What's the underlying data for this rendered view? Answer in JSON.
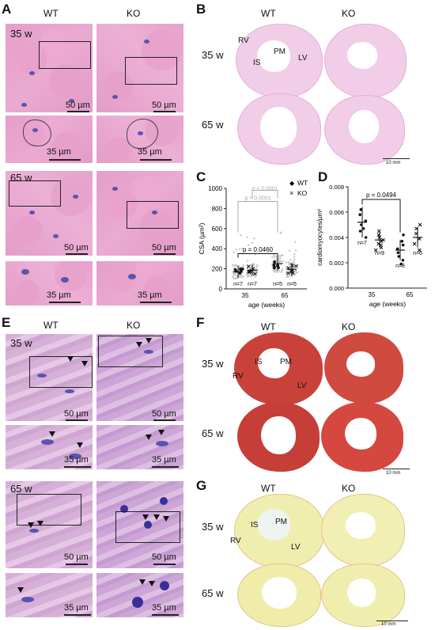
{
  "panels": {
    "A": {
      "label": "A",
      "col_wt": "WT",
      "col_ko": "KO",
      "row1": "35 w",
      "row2": "65 w",
      "scale_large": "50 µm",
      "scale_small": "35 µm"
    },
    "B": {
      "label": "B",
      "col_wt": "WT",
      "col_ko": "KO",
      "row1": "35 w",
      "row2": "65 w",
      "rv": "RV",
      "is": "IS",
      "pm": "PM",
      "lv": "LV",
      "scale": "10 mm"
    },
    "C": {
      "label": "C"
    },
    "D": {
      "label": "D"
    },
    "E": {
      "label": "E",
      "col_wt": "WT",
      "col_ko": "KO",
      "row1": "35 w",
      "row2": "65 w",
      "scale_large": "50 µm",
      "scale_small": "35 µm"
    },
    "F": {
      "label": "F",
      "col_wt": "WT",
      "col_ko": "KO",
      "row1": "35 w",
      "row2": "65 w",
      "rv": "RV",
      "is": "IS",
      "pm": "PM",
      "lv": "LV",
      "scale": "10 mm"
    },
    "G": {
      "label": "G",
      "col_wt": "WT",
      "col_ko": "KO",
      "row1": "35 w",
      "row2": "65 w",
      "rv": "RV",
      "is": "IS",
      "pm": "PM",
      "lv": "LV",
      "scale": "10 mm"
    }
  },
  "chart_data": [
    {
      "type": "scatter",
      "panel": "C",
      "xlabel": "age (weeks)",
      "ylabel": "CSA (µm²)",
      "categories": [
        "35",
        "65"
      ],
      "ylim": [
        0,
        1000
      ],
      "yticks": [
        0,
        200,
        400,
        600,
        800,
        1000
      ],
      "legend": {
        "placement": "top-right",
        "entries": [
          {
            "marker": "◆",
            "name": "WT"
          },
          {
            "marker": "×",
            "name": "KO"
          }
        ]
      },
      "series": [
        {
          "name": "WT",
          "group": "35",
          "n_label": "n=7",
          "mean": 170,
          "sd": 60
        },
        {
          "name": "KO",
          "group": "35",
          "n_label": "n=7",
          "mean": 185,
          "sd": 55
        },
        {
          "name": "WT",
          "group": "65",
          "n_label": "n=5",
          "mean": 250,
          "sd": 70
        },
        {
          "name": "KO",
          "group": "65",
          "n_label": "n=5",
          "mean": 195,
          "sd": 65
        }
      ],
      "annotations": [
        {
          "text": "p = 0.0460",
          "color": "#000000"
        },
        {
          "text": "p = 0.0001",
          "color": "#aaaaaa"
        },
        {
          "text": "p < 0.0001",
          "color": "#aaaaaa"
        }
      ]
    },
    {
      "type": "scatter",
      "panel": "D",
      "xlabel": "age (weeks)",
      "ylabel": "cardiomyocytes/µm²",
      "categories": [
        "35",
        "65"
      ],
      "ylim": [
        0,
        0.008
      ],
      "yticks": [
        "0.000",
        "0.002",
        "0.004",
        "0.006",
        "0.008"
      ],
      "series": [
        {
          "name": "WT",
          "group": "35",
          "n_label": "n=7",
          "mean": 0.0052,
          "sd": 0.0012,
          "points": [
            0.0062,
            0.0058,
            0.0053,
            0.005,
            0.0047,
            0.0045,
            0.004
          ]
        },
        {
          "name": "KO",
          "group": "35",
          "n_label": "n=9",
          "mean": 0.0038,
          "sd": 0.0006,
          "points": [
            0.0045,
            0.0042,
            0.004,
            0.0038,
            0.0037,
            0.0035,
            0.0034,
            0.0032,
            0.003
          ]
        },
        {
          "name": "WT",
          "group": "65",
          "n_label": "n=8",
          "mean": 0.003,
          "sd": 0.0008,
          "points": [
            0.0042,
            0.0037,
            0.0034,
            0.0031,
            0.0028,
            0.0025,
            0.0022,
            0.0019
          ]
        },
        {
          "name": "KO",
          "group": "65",
          "n_label": "n=6",
          "mean": 0.004,
          "sd": 0.0008,
          "points": [
            0.005,
            0.0047,
            0.0043,
            0.0039,
            0.0035,
            0.003
          ]
        }
      ],
      "annotations": [
        {
          "text": "p = 0.0494",
          "color": "#000000"
        }
      ]
    }
  ]
}
